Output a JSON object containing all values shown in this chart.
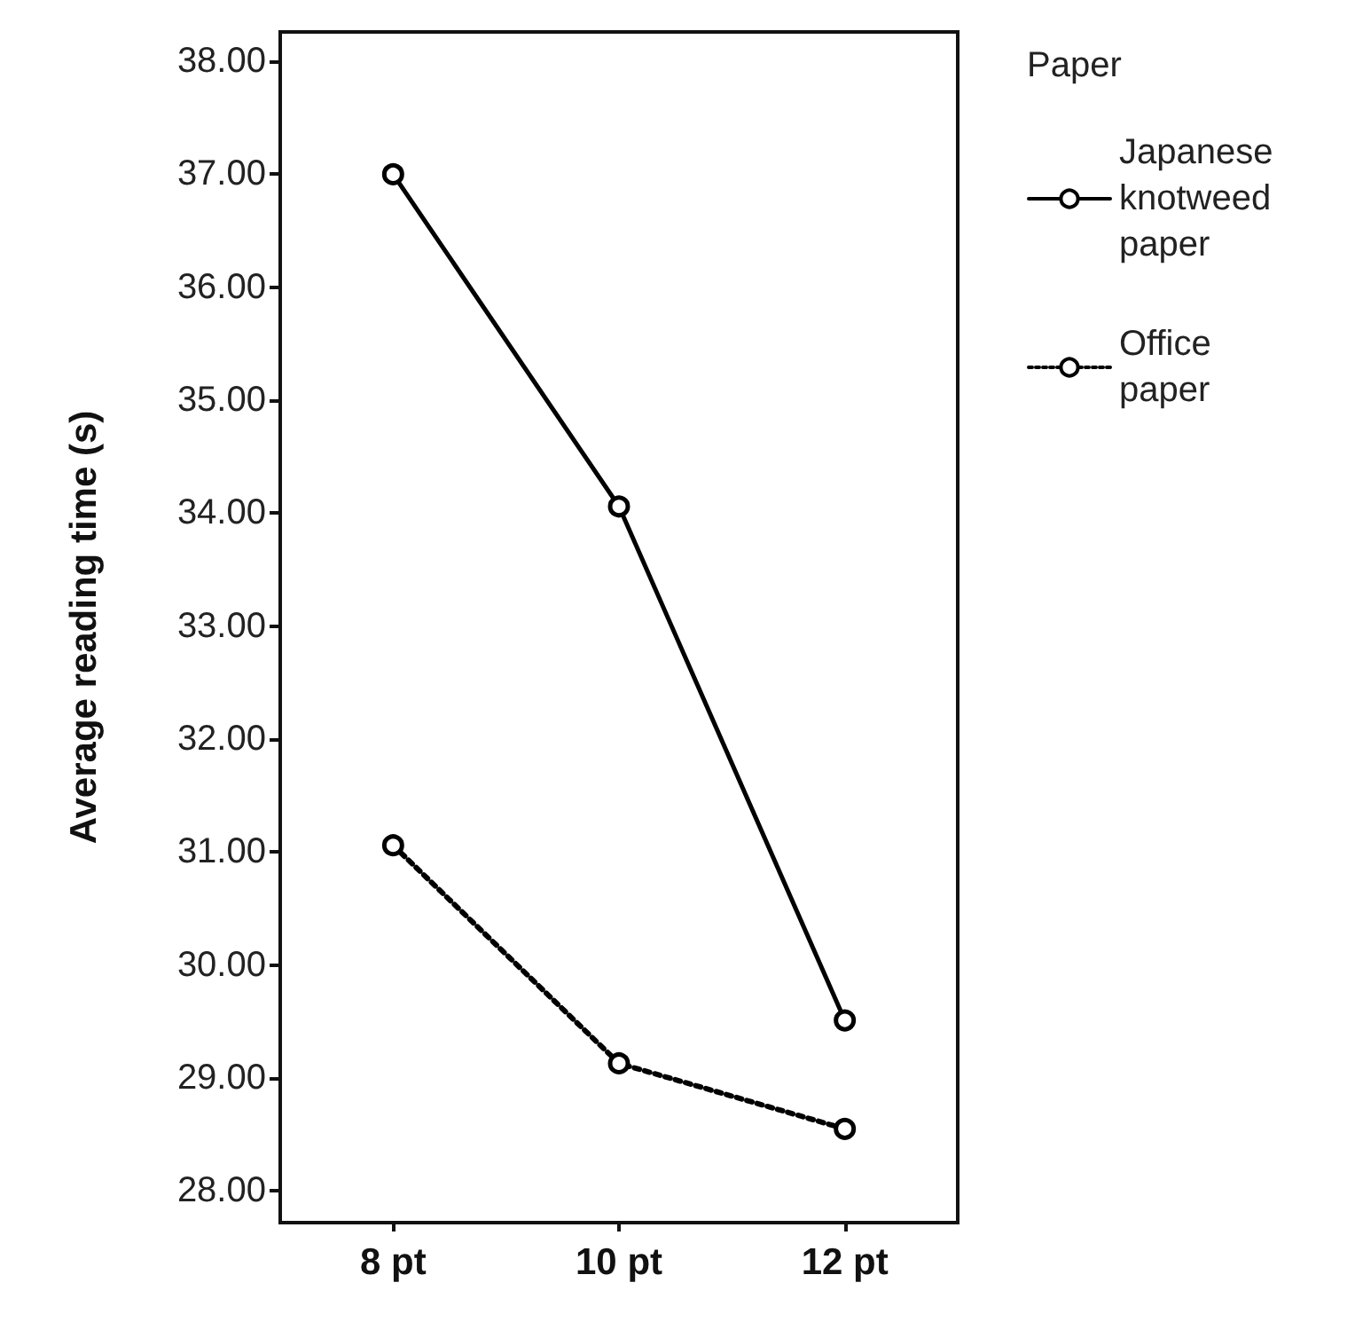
{
  "chart_data": {
    "type": "line",
    "ylabel": "Average reading time (s)",
    "legend_title": "Paper",
    "categories": [
      "8 pt",
      "10 pt",
      "12 pt"
    ],
    "series": [
      {
        "name": "Japanese knotweed paper",
        "color": "#000000",
        "values": [
          37.0,
          34.06,
          29.51
        ],
        "line_style": "solid"
      },
      {
        "name": "Office paper",
        "color": "#000000",
        "values": [
          31.06,
          29.13,
          28.55
        ],
        "line_style": "dotted"
      }
    ],
    "ylim": [
      27.72,
      38.26
    ],
    "yticks": [
      {
        "value": 28,
        "label": "28.00"
      },
      {
        "value": 29,
        "label": "29.00"
      },
      {
        "value": 30,
        "label": "30.00"
      },
      {
        "value": 31,
        "label": "31.00"
      },
      {
        "value": 32,
        "label": "32.00"
      },
      {
        "value": 33,
        "label": "33.00"
      },
      {
        "value": 34,
        "label": "34.00"
      },
      {
        "value": 35,
        "label": "35.00"
      },
      {
        "value": 36,
        "label": "36.00"
      },
      {
        "value": 37,
        "label": "37.00"
      },
      {
        "value": 38,
        "label": "38.00"
      }
    ],
    "grid": false,
    "legend": "top right",
    "marker": "circle"
  }
}
